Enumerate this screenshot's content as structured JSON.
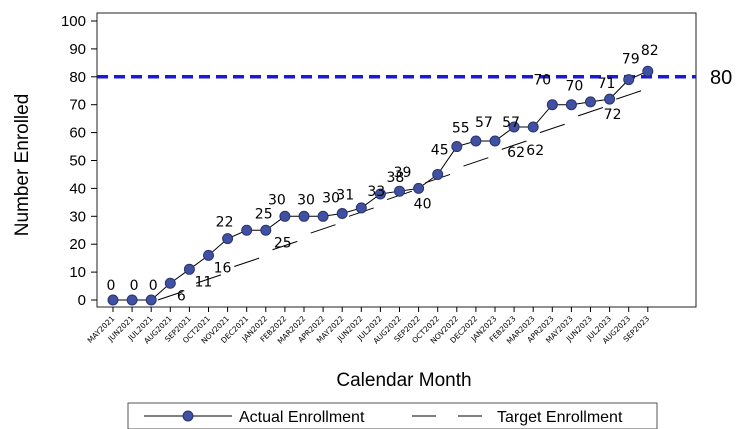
{
  "chart_data": {
    "type": "line",
    "xlabel": "Calendar Month",
    "ylabel": "Number Enrolled",
    "ylim": [
      0,
      100
    ],
    "yticks": [
      0,
      10,
      20,
      30,
      40,
      50,
      60,
      70,
      80,
      90,
      100
    ],
    "grid": false,
    "legend_position": "bottom",
    "categories": [
      "MAY2021",
      "JUN2021",
      "JUL2021",
      "AUG2021",
      "SEP2021",
      "OCT2021",
      "NOV2021",
      "DEC2021",
      "JAN2022",
      "FEB2022",
      "MAR2022",
      "APR2022",
      "MAY2022",
      "JUN2022",
      "JUL2022",
      "AUG2022",
      "SEP2022",
      "OCT2022",
      "NOV2022",
      "DEC2022",
      "JAN2023",
      "FEB2023",
      "MAR2023",
      "APR2023",
      "MAY2023",
      "JUN2023",
      "JUL2023",
      "AUG2023",
      "SEP2023"
    ],
    "series": [
      {
        "name": "Actual Enrollment",
        "color": "#3f51a0",
        "values": [
          0,
          0,
          0,
          6,
          11,
          16,
          22,
          25,
          25,
          30,
          30,
          30,
          31,
          33,
          38,
          39,
          40,
          45,
          55,
          57,
          57,
          62,
          62,
          70,
          70,
          71,
          72,
          79,
          82
        ],
        "labels": [
          "0",
          "0",
          "0",
          "6",
          "11",
          "16",
          "22",
          "25",
          "25",
          "30",
          "30",
          "30",
          "31",
          "33",
          "38",
          "39",
          "40",
          "45",
          "55",
          "57",
          "57",
          "62",
          "62",
          "70",
          "70",
          "71",
          "72",
          "79",
          "82"
        ]
      },
      {
        "name": "Target Enrollment",
        "style": "dashed",
        "color": "#000000",
        "values": [
          0,
          0,
          0,
          3,
          6,
          9,
          12,
          15,
          18,
          21,
          24,
          27,
          30,
          33,
          36,
          39,
          42,
          45,
          48,
          51,
          54,
          57,
          60,
          63,
          66,
          69,
          72,
          75,
          78
        ]
      }
    ],
    "reference_line": {
      "value": 80,
      "label": "80",
      "color": "#1a1ad6",
      "style": "dashed"
    }
  }
}
